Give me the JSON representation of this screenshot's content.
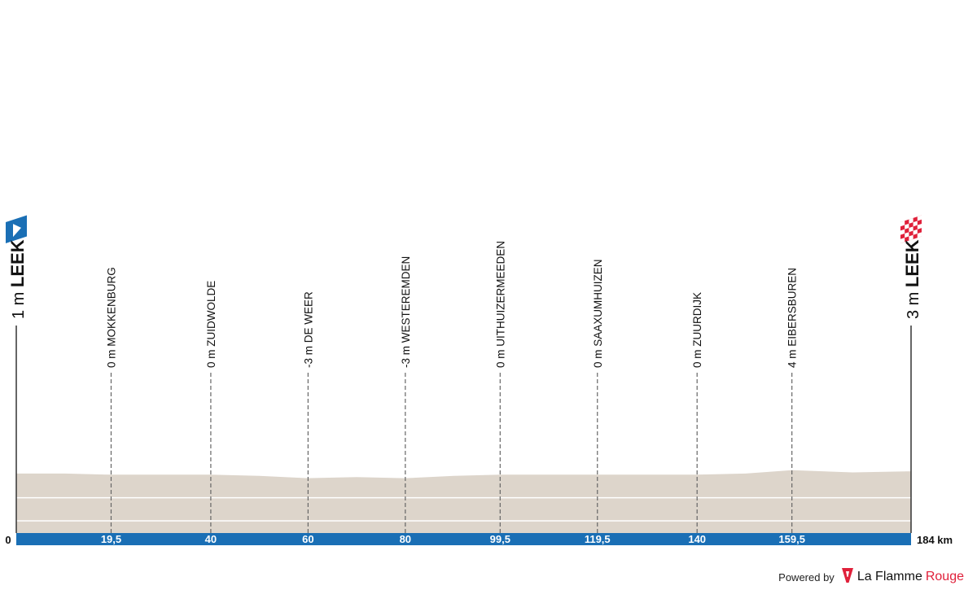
{
  "chart_data": {
    "type": "area",
    "title": "",
    "xlabel": "",
    "ylabel": "",
    "distance_unit": "km",
    "total_distance": 184,
    "total_distance_label": "184 km",
    "axis_start_label": "0",
    "elevation_range": [
      -40,
      80
    ],
    "start": {
      "altitude_label": "1 m",
      "name": "LEEK",
      "km": 0,
      "icon": "start-flag-icon",
      "color": "#1a6fb5"
    },
    "finish": {
      "altitude_label": "3 m",
      "name": "LEEK",
      "km": 184,
      "icon": "finish-flag-icon",
      "color": "#e0203a"
    },
    "waypoints": [
      {
        "km": 19.5,
        "km_label": "19,5",
        "altitude_label": "0 m",
        "name": "MOKKENBURG"
      },
      {
        "km": 40,
        "km_label": "40",
        "altitude_label": "0 m",
        "name": "ZUIDWOLDE"
      },
      {
        "km": 60,
        "km_label": "60",
        "altitude_label": "-3 m",
        "name": "DE WEER"
      },
      {
        "km": 80,
        "km_label": "80",
        "altitude_label": "-3 m",
        "name": "WESTEREMDEN"
      },
      {
        "km": 99.5,
        "km_label": "99,5",
        "altitude_label": "0 m",
        "name": "UITHUIZERMEEDEN"
      },
      {
        "km": 119.5,
        "km_label": "119,5",
        "altitude_label": "0 m",
        "name": "SAAXUMHUIZEN"
      },
      {
        "km": 140,
        "km_label": "140",
        "altitude_label": "0 m",
        "name": "ZUURDIJK"
      },
      {
        "km": 159.5,
        "km_label": "159,5",
        "altitude_label": "4 m",
        "name": "EIBERSBUREN"
      }
    ],
    "profile": [
      {
        "km": 0,
        "elevation": 1
      },
      {
        "km": 10,
        "elevation": 1
      },
      {
        "km": 19.5,
        "elevation": 0
      },
      {
        "km": 30,
        "elevation": 0
      },
      {
        "km": 40,
        "elevation": 0
      },
      {
        "km": 50,
        "elevation": -1
      },
      {
        "km": 60,
        "elevation": -3
      },
      {
        "km": 70,
        "elevation": -2
      },
      {
        "km": 80,
        "elevation": -3
      },
      {
        "km": 90,
        "elevation": -1
      },
      {
        "km": 99.5,
        "elevation": 0
      },
      {
        "km": 110,
        "elevation": 0
      },
      {
        "km": 119.5,
        "elevation": 0
      },
      {
        "km": 130,
        "elevation": 0
      },
      {
        "km": 140,
        "elevation": 0
      },
      {
        "km": 150,
        "elevation": 1
      },
      {
        "km": 159.5,
        "elevation": 4
      },
      {
        "km": 172,
        "elevation": 2
      },
      {
        "km": 184,
        "elevation": 3
      }
    ],
    "colors": {
      "terrain": "#ddd5cb",
      "distance_bar": "#1a6fb5",
      "gridline": "#ffffff",
      "marker_line": "#666666"
    }
  },
  "footer": {
    "powered_by": "Powered by",
    "brand_part1": "La Flamme",
    "brand_part2": "Rouge",
    "brand_icon": "flamme-rouge-logo-icon"
  }
}
